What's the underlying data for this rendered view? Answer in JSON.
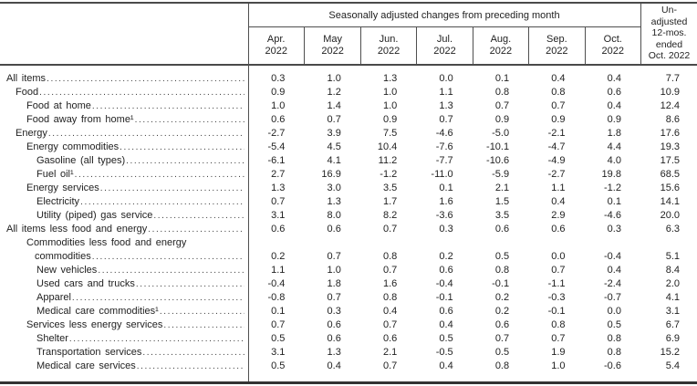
{
  "chart_data": {
    "type": "table",
    "spanner_header": "Seasonally adjusted changes from preceding month",
    "month_columns": [
      {
        "abbr": "Apr.",
        "year": "2022"
      },
      {
        "abbr": "May",
        "year": "2022"
      },
      {
        "abbr": "Jun.",
        "year": "2022"
      },
      {
        "abbr": "Jul.",
        "year": "2022"
      },
      {
        "abbr": "Aug.",
        "year": "2022"
      },
      {
        "abbr": "Sep.",
        "year": "2022"
      },
      {
        "abbr": "Oct.",
        "year": "2022"
      }
    ],
    "annual_header_lines": [
      "Un-",
      "adjusted",
      "12-mos.",
      "ended",
      "Oct. 2022"
    ],
    "rows": [
      {
        "label": "All items",
        "indent": 0,
        "values": [
          "0.3",
          "1.0",
          "1.3",
          "0.0",
          "0.1",
          "0.4",
          "0.4"
        ],
        "annual": "7.7"
      },
      {
        "label": "Food",
        "indent": 1,
        "values": [
          "0.9",
          "1.2",
          "1.0",
          "1.1",
          "0.8",
          "0.8",
          "0.6"
        ],
        "annual": "10.9"
      },
      {
        "label": "Food at home",
        "indent": 2,
        "values": [
          "1.0",
          "1.4",
          "1.0",
          "1.3",
          "0.7",
          "0.7",
          "0.4"
        ],
        "annual": "12.4"
      },
      {
        "label": "Food away from home¹",
        "indent": 2,
        "values": [
          "0.6",
          "0.7",
          "0.9",
          "0.7",
          "0.9",
          "0.9",
          "0.9"
        ],
        "annual": "8.6"
      },
      {
        "label": "Energy",
        "indent": 1,
        "values": [
          "-2.7",
          "3.9",
          "7.5",
          "-4.6",
          "-5.0",
          "-2.1",
          "1.8"
        ],
        "annual": "17.6"
      },
      {
        "label": "Energy commodities",
        "indent": 2,
        "values": [
          "-5.4",
          "4.5",
          "10.4",
          "-7.6",
          "-10.1",
          "-4.7",
          "4.4"
        ],
        "annual": "19.3"
      },
      {
        "label": "Gasoline (all types)",
        "indent": 3,
        "values": [
          "-6.1",
          "4.1",
          "11.2",
          "-7.7",
          "-10.6",
          "-4.9",
          "4.0"
        ],
        "annual": "17.5"
      },
      {
        "label": "Fuel oil¹",
        "indent": 3,
        "values": [
          "2.7",
          "16.9",
          "-1.2",
          "-11.0",
          "-5.9",
          "-2.7",
          "19.8"
        ],
        "annual": "68.5"
      },
      {
        "label": "Energy services",
        "indent": 2,
        "values": [
          "1.3",
          "3.0",
          "3.5",
          "0.1",
          "2.1",
          "1.1",
          "-1.2"
        ],
        "annual": "15.6"
      },
      {
        "label": "Electricity",
        "indent": 3,
        "values": [
          "0.7",
          "1.3",
          "1.7",
          "1.6",
          "1.5",
          "0.4",
          "0.1"
        ],
        "annual": "14.1"
      },
      {
        "label": "Utility (piped) gas service",
        "indent": 3,
        "values": [
          "3.1",
          "8.0",
          "8.2",
          "-3.6",
          "3.5",
          "2.9",
          "-4.6"
        ],
        "annual": "20.0"
      },
      {
        "label": "All items less food and energy",
        "indent": 0,
        "values": [
          "0.6",
          "0.6",
          "0.7",
          "0.3",
          "0.6",
          "0.6",
          "0.3"
        ],
        "annual": "6.3"
      },
      {
        "label": "Commodities less food and energy",
        "label_line2": "commodities",
        "indent": 2,
        "values": [
          "0.2",
          "0.7",
          "0.8",
          "0.2",
          "0.5",
          "0.0",
          "-0.4"
        ],
        "annual": "5.1"
      },
      {
        "label": "New vehicles",
        "indent": 3,
        "values": [
          "1.1",
          "1.0",
          "0.7",
          "0.6",
          "0.8",
          "0.7",
          "0.4"
        ],
        "annual": "8.4"
      },
      {
        "label": "Used cars and trucks",
        "indent": 3,
        "values": [
          "-0.4",
          "1.8",
          "1.6",
          "-0.4",
          "-0.1",
          "-1.1",
          "-2.4"
        ],
        "annual": "2.0"
      },
      {
        "label": "Apparel",
        "indent": 3,
        "values": [
          "-0.8",
          "0.7",
          "0.8",
          "-0.1",
          "0.2",
          "-0.3",
          "-0.7"
        ],
        "annual": "4.1"
      },
      {
        "label": "Medical care commodities¹",
        "indent": 3,
        "values": [
          "0.1",
          "0.3",
          "0.4",
          "0.6",
          "0.2",
          "-0.1",
          "0.0"
        ],
        "annual": "3.1"
      },
      {
        "label": "Services less energy services",
        "indent": 2,
        "values": [
          "0.7",
          "0.6",
          "0.7",
          "0.4",
          "0.6",
          "0.8",
          "0.5"
        ],
        "annual": "6.7"
      },
      {
        "label": "Shelter",
        "indent": 3,
        "values": [
          "0.5",
          "0.6",
          "0.6",
          "0.5",
          "0.7",
          "0.7",
          "0.8"
        ],
        "annual": "6.9"
      },
      {
        "label": "Transportation services",
        "indent": 3,
        "values": [
          "3.1",
          "1.3",
          "2.1",
          "-0.5",
          "0.5",
          "1.9",
          "0.8"
        ],
        "annual": "15.2"
      },
      {
        "label": "Medical care services",
        "indent": 3,
        "values": [
          "0.5",
          "0.4",
          "0.7",
          "0.4",
          "0.8",
          "1.0",
          "-0.6"
        ],
        "annual": "5.4"
      }
    ]
  }
}
